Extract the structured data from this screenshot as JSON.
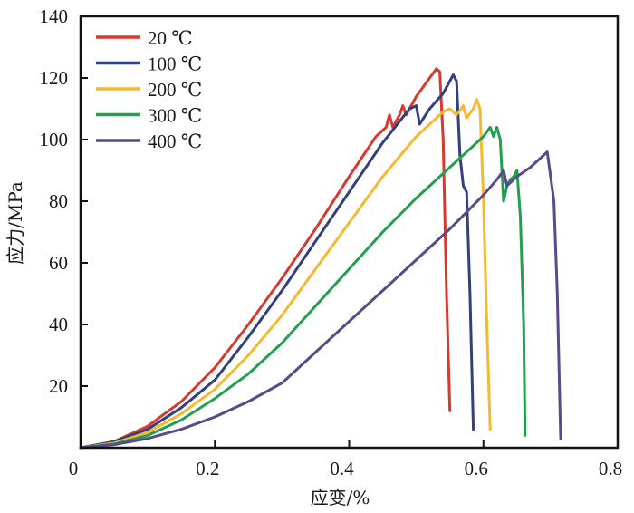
{
  "chart_data": {
    "type": "line",
    "title": "",
    "xlabel": "应变/%",
    "ylabel": "应力/MPa",
    "xlim": [
      0,
      0.8
    ],
    "ylim": [
      0,
      140
    ],
    "xticks": [
      0,
      0.2,
      0.4,
      0.6,
      0.8
    ],
    "xtick_labels": [
      "0",
      "0.2",
      "0.4",
      "0.6",
      "0.8"
    ],
    "yticks": [
      20,
      40,
      60,
      80,
      100,
      120,
      140
    ],
    "ytick_labels": [
      "20",
      "40",
      "60",
      "80",
      "100",
      "120",
      "140"
    ],
    "grid": false,
    "legend_position": "top-left",
    "series": [
      {
        "name": "20 ℃",
        "color": "#d63a2f",
        "points": [
          [
            0,
            0
          ],
          [
            0.05,
            2
          ],
          [
            0.1,
            7
          ],
          [
            0.15,
            15
          ],
          [
            0.2,
            26
          ],
          [
            0.25,
            40
          ],
          [
            0.3,
            55
          ],
          [
            0.35,
            71
          ],
          [
            0.4,
            88
          ],
          [
            0.44,
            101
          ],
          [
            0.455,
            104
          ],
          [
            0.46,
            108
          ],
          [
            0.465,
            104
          ],
          [
            0.475,
            108
          ],
          [
            0.48,
            111
          ],
          [
            0.485,
            108
          ],
          [
            0.5,
            114
          ],
          [
            0.52,
            120
          ],
          [
            0.53,
            123
          ],
          [
            0.535,
            122
          ],
          [
            0.54,
            100
          ],
          [
            0.545,
            50
          ],
          [
            0.55,
            12
          ]
        ]
      },
      {
        "name": "100 ℃",
        "color": "#33407f",
        "points": [
          [
            0,
            0
          ],
          [
            0.05,
            2
          ],
          [
            0.1,
            6
          ],
          [
            0.15,
            13
          ],
          [
            0.2,
            22
          ],
          [
            0.25,
            36
          ],
          [
            0.3,
            51
          ],
          [
            0.35,
            67
          ],
          [
            0.4,
            83
          ],
          [
            0.45,
            99
          ],
          [
            0.49,
            110
          ],
          [
            0.5,
            111
          ],
          [
            0.505,
            105
          ],
          [
            0.52,
            110
          ],
          [
            0.54,
            115
          ],
          [
            0.555,
            121
          ],
          [
            0.56,
            119
          ],
          [
            0.565,
            95
          ],
          [
            0.57,
            85
          ],
          [
            0.575,
            83
          ],
          [
            0.58,
            50
          ],
          [
            0.585,
            6
          ]
        ]
      },
      {
        "name": "200 ℃",
        "color": "#f5b82e",
        "points": [
          [
            0,
            0
          ],
          [
            0.05,
            1.5
          ],
          [
            0.1,
            5
          ],
          [
            0.15,
            11
          ],
          [
            0.2,
            19
          ],
          [
            0.25,
            30
          ],
          [
            0.3,
            43
          ],
          [
            0.35,
            58
          ],
          [
            0.4,
            73
          ],
          [
            0.45,
            88
          ],
          [
            0.5,
            101
          ],
          [
            0.54,
            109
          ],
          [
            0.55,
            110
          ],
          [
            0.56,
            108
          ],
          [
            0.57,
            111
          ],
          [
            0.575,
            107
          ],
          [
            0.585,
            110
          ],
          [
            0.59,
            113
          ],
          [
            0.595,
            110
          ],
          [
            0.6,
            80
          ],
          [
            0.605,
            40
          ],
          [
            0.61,
            6
          ]
        ]
      },
      {
        "name": "300 ℃",
        "color": "#22a04f",
        "points": [
          [
            0,
            0
          ],
          [
            0.05,
            1.2
          ],
          [
            0.1,
            4
          ],
          [
            0.15,
            9
          ],
          [
            0.2,
            16
          ],
          [
            0.25,
            24
          ],
          [
            0.3,
            34
          ],
          [
            0.35,
            46
          ],
          [
            0.4,
            58
          ],
          [
            0.45,
            70
          ],
          [
            0.5,
            81
          ],
          [
            0.55,
            91
          ],
          [
            0.6,
            101
          ],
          [
            0.61,
            104
          ],
          [
            0.615,
            101
          ],
          [
            0.62,
            104
          ],
          [
            0.625,
            100
          ],
          [
            0.63,
            80
          ],
          [
            0.635,
            85
          ],
          [
            0.64,
            87
          ],
          [
            0.645,
            88
          ],
          [
            0.65,
            90
          ],
          [
            0.655,
            75
          ],
          [
            0.66,
            40
          ],
          [
            0.662,
            4
          ]
        ]
      },
      {
        "name": "400 ℃",
        "color": "#5a4a8a",
        "points": [
          [
            0,
            0
          ],
          [
            0.05,
            1
          ],
          [
            0.1,
            3
          ],
          [
            0.15,
            6
          ],
          [
            0.2,
            10
          ],
          [
            0.25,
            15
          ],
          [
            0.3,
            21
          ],
          [
            0.35,
            31
          ],
          [
            0.4,
            41
          ],
          [
            0.45,
            51
          ],
          [
            0.5,
            61
          ],
          [
            0.55,
            71
          ],
          [
            0.6,
            82
          ],
          [
            0.62,
            87
          ],
          [
            0.63,
            90
          ],
          [
            0.635,
            85
          ],
          [
            0.65,
            88
          ],
          [
            0.67,
            91
          ],
          [
            0.69,
            95
          ],
          [
            0.695,
            96
          ],
          [
            0.705,
            80
          ],
          [
            0.71,
            50
          ],
          [
            0.715,
            3
          ]
        ]
      }
    ]
  }
}
